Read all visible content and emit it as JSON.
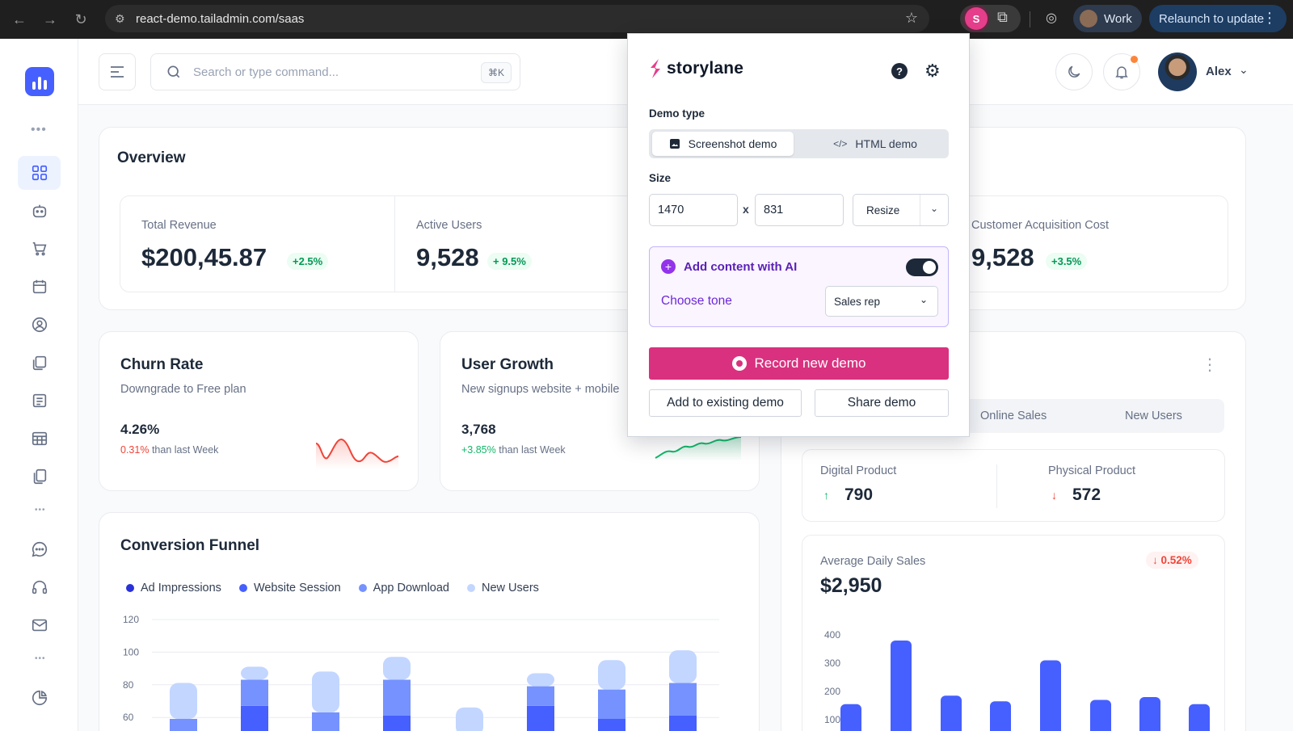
{
  "browser": {
    "url": "react-demo.tailadmin.com/saas",
    "profile_label": "Work",
    "relaunch_label": "Relaunch to update"
  },
  "header": {
    "search_placeholder": "Search or type command...",
    "search_shortcut": "⌘K",
    "user_name": "Alex"
  },
  "overview": {
    "title": "Overview",
    "stats": [
      {
        "label": "Total Revenue",
        "value": "$200,45.87",
        "delta": "+2.5%"
      },
      {
        "label": "Active Users",
        "value": "9,528",
        "delta": "+ 9.5%"
      },
      {
        "label": "Customer Acquisition Cost",
        "value": "9,528",
        "delta": "+3.5%"
      }
    ]
  },
  "churn": {
    "title": "Churn Rate",
    "subtitle": "Downgrade to Free plan",
    "value": "4.26%",
    "delta": "0.31%",
    "note": "than last Week"
  },
  "growth": {
    "title": "User Growth",
    "subtitle": "New signups website + mobile",
    "value": "3,768",
    "delta": "+3.85%",
    "note": "than last Week"
  },
  "funnel": {
    "title": "Conversion Funnel",
    "legend": [
      {
        "label": "Ad Impressions",
        "color": "#2a31d8"
      },
      {
        "label": "Website Session",
        "color": "#465fff"
      },
      {
        "label": "App Download",
        "color": "#7592ff"
      },
      {
        "label": "New Users",
        "color": "#c2d6ff"
      }
    ]
  },
  "sales": {
    "tabs": [
      "Online Sales",
      "New Users"
    ],
    "digital_label": "Digital Product",
    "digital_value": "790",
    "physical_label": "Physical Product",
    "physical_value": "572",
    "avg_label": "Average Daily Sales",
    "avg_value": "$2,950",
    "avg_delta": "0.52%"
  },
  "chart_data": [
    {
      "type": "bar",
      "stacked": true,
      "y_ticks": [
        120,
        100,
        80,
        60
      ],
      "series": [
        {
          "name": "Ad Impressions",
          "values": [
            0,
            0,
            0,
            0,
            0,
            0,
            0,
            0
          ]
        },
        {
          "name": "Website Session",
          "values": [
            0,
            18,
            0,
            12,
            0,
            18,
            10,
            12
          ]
        },
        {
          "name": "App Download",
          "values": [
            10,
            16,
            14,
            22,
            0,
            12,
            18,
            20
          ]
        },
        {
          "name": "New Users",
          "values": [
            22,
            8,
            25,
            14,
            17,
            8,
            18,
            20
          ]
        }
      ]
    },
    {
      "type": "bar",
      "y_ticks": [
        400,
        300,
        200,
        100
      ],
      "values": [
        155,
        380,
        185,
        165,
        310,
        170,
        180,
        155
      ]
    }
  ],
  "storylane": {
    "brand": "storylane",
    "demo_type_label": "Demo type",
    "screenshot_demo": "Screenshot demo",
    "html_demo": "HTML demo",
    "size_label": "Size",
    "width": "1470",
    "height": "831",
    "times": "x",
    "resize": "Resize",
    "ai_label": "Add content with AI",
    "tone_label": "Choose tone",
    "tone_value": "Sales rep",
    "record": "Record new demo",
    "add_existing": "Add to existing demo",
    "share": "Share demo"
  }
}
